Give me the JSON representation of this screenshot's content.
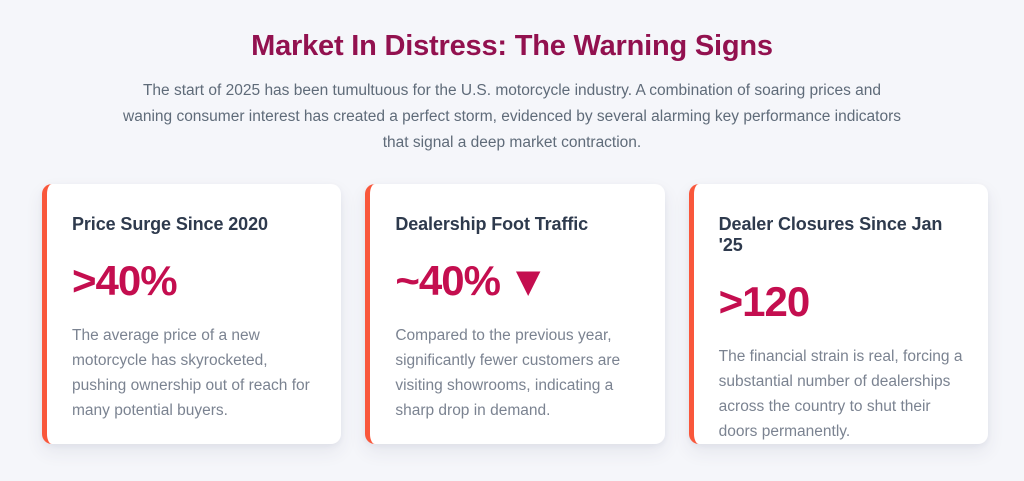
{
  "header": {
    "title": "Market In Distress: The Warning Signs",
    "subtitle": "The start of 2025 has been tumultuous for the U.S. motorcycle industry. A combination of soaring prices and waning consumer interest has created a perfect storm, evidenced by several alarming key performance indicators that signal a deep market contraction."
  },
  "cards": [
    {
      "heading": "Price Surge Since 2020",
      "stat": ">40%",
      "trend_icon": "",
      "body": "The average price of a new motorcycle has skyrocketed, pushing ownership out of reach for many potential buyers."
    },
    {
      "heading": "Dealership Foot Traffic",
      "stat": "~40%",
      "trend_icon": "▼",
      "body": "Compared to the previous year, significantly fewer customers are visiting showrooms, indicating a sharp drop in demand."
    },
    {
      "heading": "Dealer Closures Since Jan '25",
      "stat": ">120",
      "trend_icon": "",
      "body": "The financial strain is real, forcing a substantial number of dealerships across the country to shut their doors permanently."
    }
  ],
  "colors": {
    "page_bg": "#F5F6FA",
    "card_bg": "#FFFFFF",
    "title_color": "#92114F",
    "stat_color": "#C40E4F",
    "heading_color": "#2E3A4D",
    "subtitle_color": "#5F6B79",
    "body_color": "#7B8391",
    "accent_border": "#F9573B"
  }
}
